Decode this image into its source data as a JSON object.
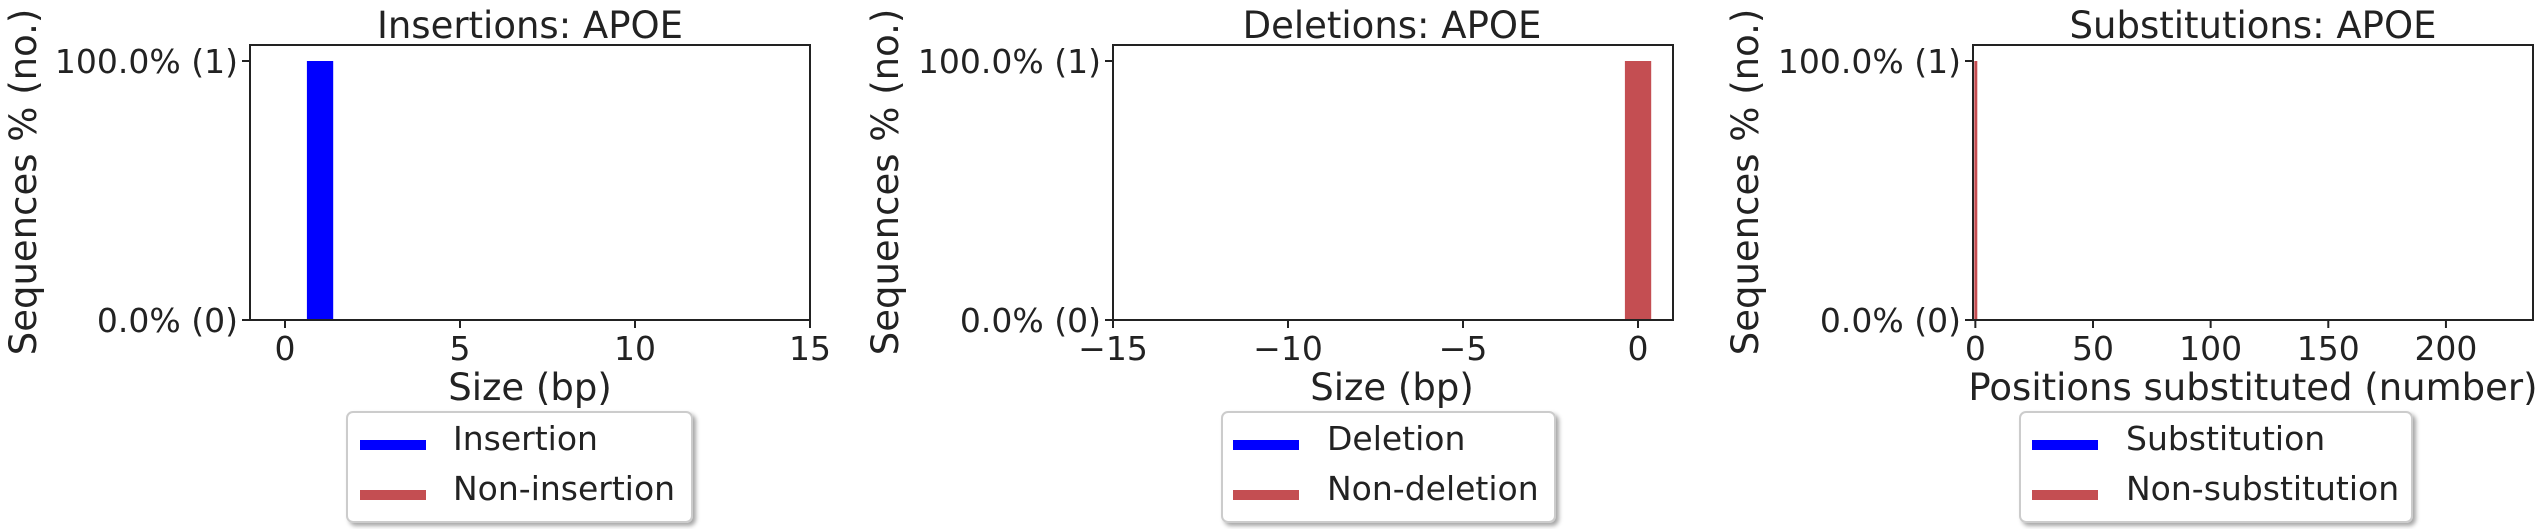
{
  "colors": {
    "insertion": "#0000ff",
    "non": "#c44e52",
    "axis": "#222222"
  },
  "chart_data": [
    {
      "type": "bar",
      "title": "Insertions: APOE",
      "xlabel": "Size (bp)",
      "ylabel": "Sequences % (no.)",
      "xlim": [
        -1,
        15
      ],
      "ylim": [
        0,
        1
      ],
      "xticks": [
        0,
        5,
        10,
        15
      ],
      "xtick_labels": [
        "0",
        "5",
        "10",
        "15"
      ],
      "yticks": [
        0,
        1
      ],
      "ytick_labels": [
        "0.0% (0)",
        "100.0% (1)"
      ],
      "series": [
        {
          "name": "Insertion",
          "bars": [
            {
              "x": 1,
              "value": 1
            }
          ]
        },
        {
          "name": "Non-insertion",
          "bars": []
        }
      ],
      "legend": [
        "Insertion",
        "Non-insertion"
      ],
      "legend_position": "below"
    },
    {
      "type": "bar",
      "title": "Deletions: APOE",
      "xlabel": "Size (bp)",
      "ylabel": "Sequences % (no.)",
      "xlim": [
        -15,
        1
      ],
      "ylim": [
        0,
        1
      ],
      "xticks": [
        -15,
        -10,
        -5,
        0
      ],
      "xtick_labels": [
        "−15",
        "−10",
        "−5",
        "0"
      ],
      "yticks": [
        0,
        1
      ],
      "ytick_labels": [
        "0.0% (0)",
        "100.0% (1)"
      ],
      "series": [
        {
          "name": "Deletion",
          "bars": []
        },
        {
          "name": "Non-deletion",
          "bars": [
            {
              "x": 0,
              "value": 1
            }
          ]
        }
      ],
      "legend": [
        "Deletion",
        "Non-deletion"
      ],
      "legend_position": "below"
    },
    {
      "type": "bar",
      "title": "Substitutions: APOE",
      "xlabel": "Positions substituted (number)",
      "ylabel": "Sequences % (no.)",
      "xlim": [
        -1,
        237
      ],
      "ylim": [
        0,
        1
      ],
      "xticks": [
        0,
        50,
        100,
        150,
        200
      ],
      "xtick_labels": [
        "0",
        "50",
        "100",
        "150",
        "200"
      ],
      "yticks": [
        0,
        1
      ],
      "ytick_labels": [
        "0.0% (0)",
        "100.0% (1)"
      ],
      "series": [
        {
          "name": "Substitution",
          "bars": []
        },
        {
          "name": "Non-substitution",
          "bars": [
            {
              "x": 0,
              "value": 1
            }
          ]
        }
      ],
      "legend": [
        "Substitution",
        "Non-substitution"
      ],
      "legend_position": "below"
    }
  ]
}
